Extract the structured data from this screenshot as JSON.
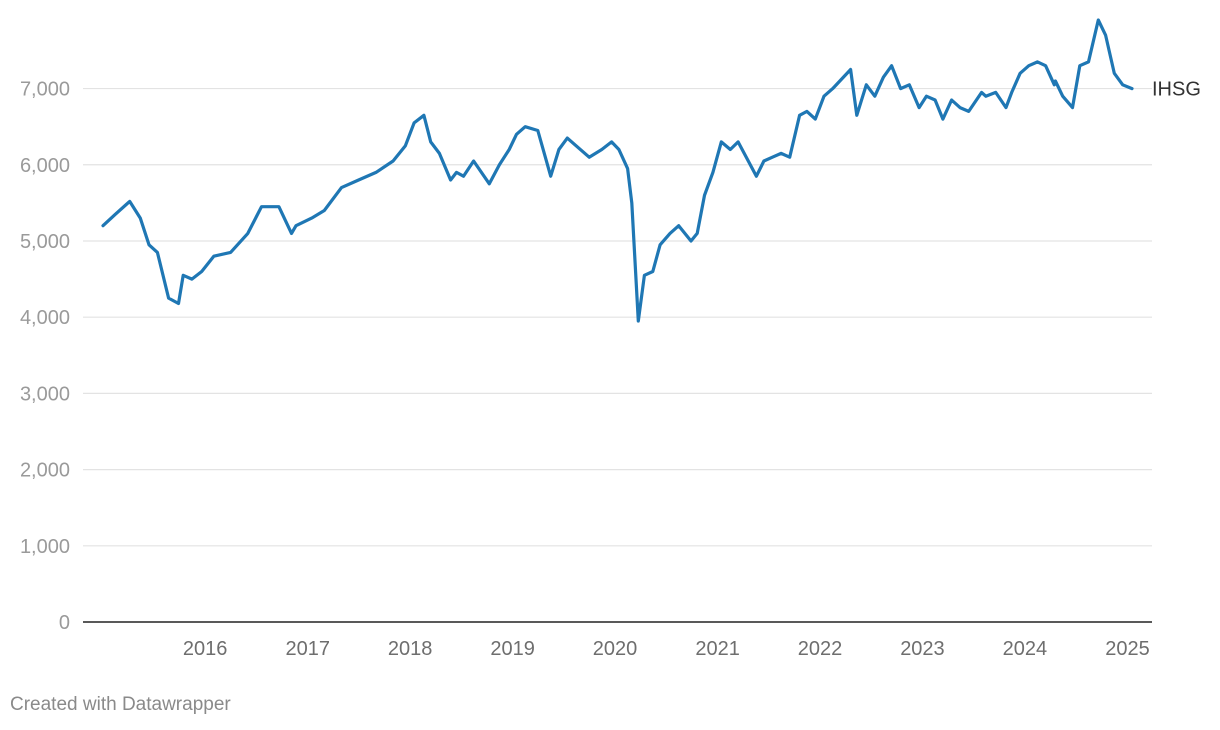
{
  "footer": {
    "credit": "Created with Datawrapper"
  },
  "colors": {
    "line": "#1f77b4",
    "grid": "#e3e3e3",
    "baseline": "#222222"
  },
  "chart_data": {
    "type": "line",
    "title": "",
    "xlabel": "",
    "ylabel": "",
    "ylim": [
      0,
      7900
    ],
    "xlim": [
      "2015-01-02",
      "2025-01-17"
    ],
    "yticks": [
      0,
      1000,
      2000,
      3000,
      4000,
      5000,
      6000,
      7000
    ],
    "ytick_labels": [
      "0",
      "1,000",
      "2,000",
      "3,000",
      "4,000",
      "5,000",
      "6,000",
      "7,000"
    ],
    "xticks": [
      "2016",
      "2017",
      "2018",
      "2019",
      "2020",
      "2021",
      "2022",
      "2023",
      "2024",
      "2025"
    ],
    "grid": true,
    "legend": "none",
    "series": [
      {
        "name": "IHSG",
        "color": "#1f77b4",
        "x": [
          "2015-01-02",
          "2015-02-15",
          "2015-04-07",
          "2015-05-15",
          "2015-06-15",
          "2015-07-15",
          "2015-08-24",
          "2015-09-28",
          "2015-10-15",
          "2015-11-15",
          "2015-12-20",
          "2016-02-01",
          "2016-04-01",
          "2016-06-01",
          "2016-07-20",
          "2016-09-20",
          "2016-11-04",
          "2016-11-20",
          "2017-01-15",
          "2017-03-01",
          "2017-05-01",
          "2017-07-01",
          "2017-09-01",
          "2017-11-01",
          "2017-12-15",
          "2018-01-15",
          "2018-02-19",
          "2018-03-15",
          "2018-04-15",
          "2018-05-25",
          "2018-06-15",
          "2018-07-10",
          "2018-08-15",
          "2018-10-10",
          "2018-11-15",
          "2018-12-20",
          "2019-01-15",
          "2019-02-15",
          "2019-04-01",
          "2019-05-17",
          "2019-06-15",
          "2019-07-15",
          "2019-08-15",
          "2019-10-01",
          "2019-11-15",
          "2019-12-20",
          "2020-01-15",
          "2020-02-15",
          "2020-03-01",
          "2020-03-24",
          "2020-04-15",
          "2020-05-15",
          "2020-06-10",
          "2020-07-15",
          "2020-08-15",
          "2020-09-28",
          "2020-10-20",
          "2020-11-15",
          "2020-12-15",
          "2021-01-14",
          "2021-02-15",
          "2021-03-15",
          "2021-05-19",
          "2021-06-15",
          "2021-07-15",
          "2021-08-15",
          "2021-09-15",
          "2021-10-20",
          "2021-11-15",
          "2021-12-15",
          "2022-01-15",
          "2022-02-15",
          "2022-04-20",
          "2022-05-12",
          "2022-06-15",
          "2022-07-15",
          "2022-08-15",
          "2022-09-13",
          "2022-10-15",
          "2022-11-15",
          "2022-12-20",
          "2023-01-15",
          "2023-02-15",
          "2023-03-15",
          "2023-04-15",
          "2023-05-15",
          "2023-06-15",
          "2023-07-31",
          "2023-08-15",
          "2023-09-19",
          "2023-10-26",
          "2023-11-15",
          "2023-12-15",
          "2024-01-15",
          "2024-02-15",
          "2024-03-15",
          "2024-04-15",
          "2024-04-19",
          "2024-05-15",
          "2024-06-19",
          "2024-07-15",
          "2024-08-15",
          "2024-09-19",
          "2024-10-15",
          "2024-11-15",
          "2024-12-15",
          "2025-01-17"
        ],
        "y": [
          5200,
          5350,
          5520,
          5300,
          4950,
          4850,
          4250,
          4180,
          4550,
          4500,
          4600,
          4800,
          4850,
          5100,
          5450,
          5450,
          5100,
          5200,
          5300,
          5400,
          5700,
          5800,
          5900,
          6050,
          6250,
          6550,
          6650,
          6300,
          6150,
          5800,
          5900,
          5850,
          6050,
          5750,
          6000,
          6200,
          6400,
          6500,
          6450,
          5850,
          6200,
          6350,
          6250,
          6100,
          6200,
          6300,
          6200,
          5950,
          5500,
          3950,
          4550,
          4600,
          4950,
          5100,
          5200,
          5000,
          5100,
          5600,
          5900,
          6300,
          6200,
          6300,
          5850,
          6050,
          6100,
          6150,
          6100,
          6650,
          6700,
          6600,
          6900,
          7000,
          7250,
          6650,
          7050,
          6900,
          7150,
          7300,
          7000,
          7050,
          6750,
          6900,
          6850,
          6600,
          6850,
          6750,
          6700,
          6950,
          6900,
          6950,
          6750,
          6950,
          7200,
          7300,
          7350,
          7300,
          7050,
          7100,
          6900,
          6750,
          7300,
          7350,
          7900,
          7700,
          7200,
          7050,
          7000
        ]
      }
    ]
  }
}
